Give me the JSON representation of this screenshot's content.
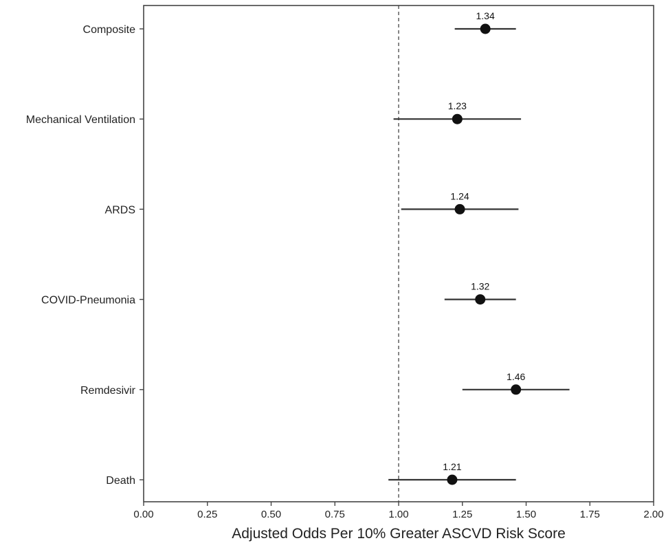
{
  "chart_data": {
    "type": "forest",
    "title": "",
    "xlabel": "Adjusted Odds Per 10% Greater ASCVD Risk Score",
    "ylabel": "",
    "xlim": [
      0.0,
      2.0
    ],
    "xticks": [
      "0.00",
      "0.25",
      "0.50",
      "0.75",
      "1.00",
      "1.25",
      "1.50",
      "1.75",
      "2.00"
    ],
    "reference_line": 1.0,
    "grid": false,
    "rows": [
      {
        "label": "Composite",
        "estimate": 1.34,
        "estimate_label": "1.34",
        "ci_low": 1.22,
        "ci_high": 1.46
      },
      {
        "label": "Mechanical Ventilation",
        "estimate": 1.23,
        "estimate_label": "1.23",
        "ci_low": 0.98,
        "ci_high": 1.48
      },
      {
        "label": "ARDS",
        "estimate": 1.24,
        "estimate_label": "1.24",
        "ci_low": 1.01,
        "ci_high": 1.47
      },
      {
        "label": "COVID-Pneumonia",
        "estimate": 1.32,
        "estimate_label": "1.32",
        "ci_low": 1.18,
        "ci_high": 1.46
      },
      {
        "label": "Remdesivir",
        "estimate": 1.46,
        "estimate_label": "1.46",
        "ci_low": 1.25,
        "ci_high": 1.67
      },
      {
        "label": "Death",
        "estimate": 1.21,
        "estimate_label": "1.21",
        "ci_low": 0.96,
        "ci_high": 1.46
      }
    ],
    "colors": {
      "marker": "#111111",
      "ci_line": "#333333",
      "axis": "#444444",
      "reference": "#444444"
    }
  }
}
